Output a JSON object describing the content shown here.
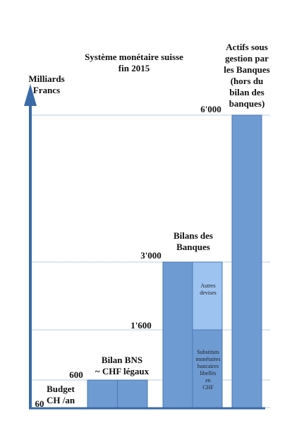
{
  "chart_data": {
    "type": "bar",
    "title": "Système monétaire suisse\nfin 2015",
    "ylabel": "Milliards\nFrancs",
    "colors": {
      "bar": "#6f9bd3",
      "bar_edge": "#4a78b4",
      "bar_light": "#9dc3f0",
      "axis": "#3a6aa8",
      "grid": "#b9cce0"
    },
    "grid_values": [
      60,
      600,
      1600,
      3000,
      6000
    ],
    "value_labels": [
      "60",
      "600",
      "1'600",
      "3'000",
      "6'000"
    ],
    "bars": [
      {
        "label": "Budget\nCH /an",
        "value": 60
      },
      {
        "label": "Bilan BNS\n~ CHF légaux",
        "value": 600
      },
      {
        "label": "Bilans des\nBanques",
        "value": 3000
      },
      {
        "label": "Actifs sous\ngestion par\nles Banques\n(hors du\nbilan des\nbanques)",
        "value": 6000
      }
    ],
    "segments": [
      {
        "label": "Substituts\nmonétaires\nbancaires\nlibellés\nen\nCHF",
        "from": 0,
        "to": 1600
      },
      {
        "label": "Autres\ndevises",
        "from": 1600,
        "to": 3000
      }
    ]
  }
}
